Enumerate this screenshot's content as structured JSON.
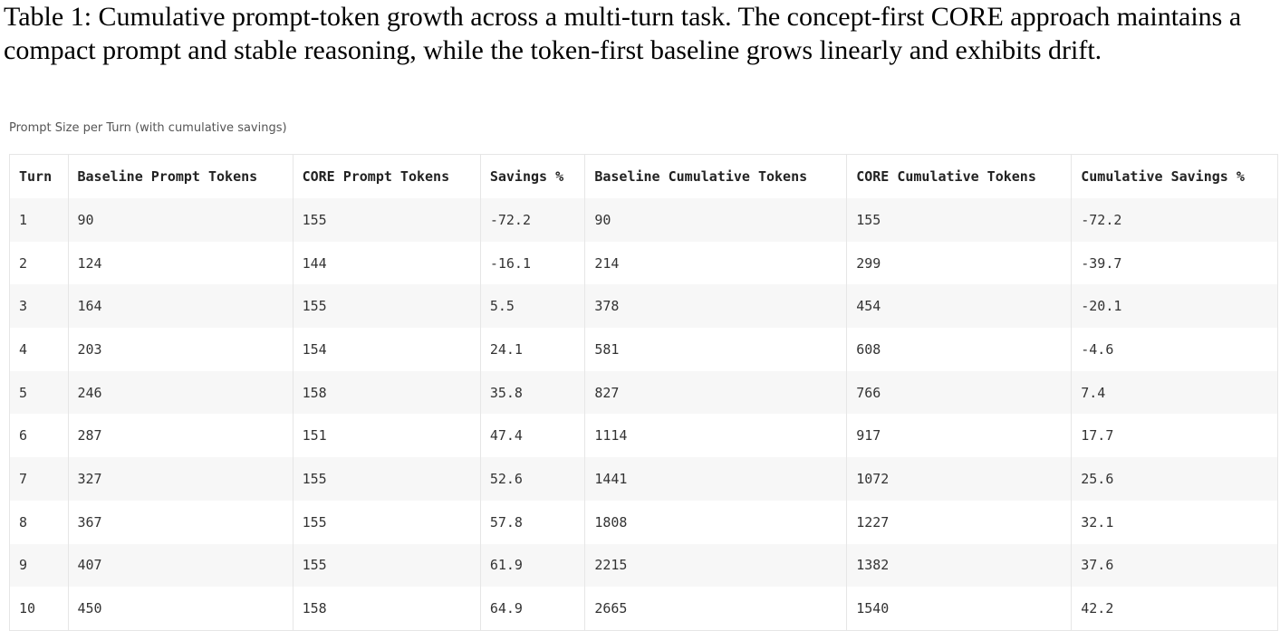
{
  "caption": "Table 1: Cumulative prompt-token growth across a multi-turn task. The concept-first CORE approach maintains a compact prompt and stable reasoning, while the token-first baseline grows linearly and exhibits drift.",
  "subtitle": "Prompt Size per Turn (with cumulative savings)",
  "table": {
    "headers": [
      "Turn",
      "Baseline Prompt Tokens",
      "CORE Prompt Tokens",
      "Savings %",
      "Baseline Cumulative Tokens",
      "CORE Cumulative Tokens",
      "Cumulative Savings %"
    ],
    "rows": [
      [
        1,
        90,
        155,
        -72.2,
        90,
        155,
        -72.2
      ],
      [
        2,
        124,
        144,
        -16.1,
        214,
        299,
        -39.7
      ],
      [
        3,
        164,
        155,
        5.5,
        378,
        454,
        -20.1
      ],
      [
        4,
        203,
        154,
        24.1,
        581,
        608,
        -4.6
      ],
      [
        5,
        246,
        158,
        35.8,
        827,
        766,
        7.4
      ],
      [
        6,
        287,
        151,
        47.4,
        1114,
        917,
        17.7
      ],
      [
        7,
        327,
        155,
        52.6,
        1441,
        1072,
        25.6
      ],
      [
        8,
        367,
        155,
        57.8,
        1808,
        1227,
        32.1
      ],
      [
        9,
        407,
        155,
        61.9,
        2215,
        1382,
        37.6
      ],
      [
        10,
        450,
        158,
        64.9,
        2665,
        1540,
        42.2
      ]
    ]
  }
}
